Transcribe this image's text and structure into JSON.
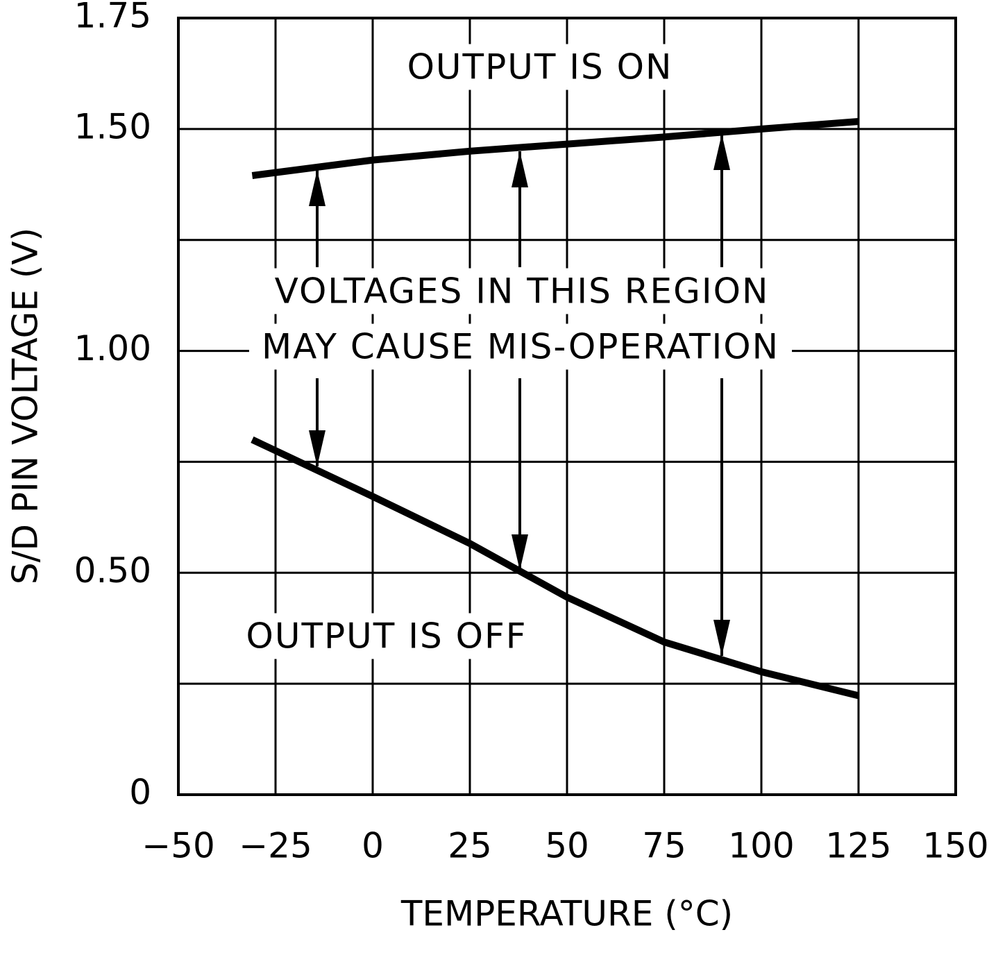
{
  "chart_data": {
    "type": "line",
    "xlabel": "TEMPERATURE (°C)",
    "ylabel": "S/D PIN VOLTAGE (V)",
    "x": [
      -31,
      0,
      25,
      50,
      75,
      100,
      125
    ],
    "series": [
      {
        "color": "#000000",
        "values": [
          1.395,
          1.43,
          1.45,
          1.466,
          1.482,
          1.5,
          1.517
        ]
      },
      {
        "color": "#000000",
        "values": [
          0.8,
          0.672,
          0.566,
          0.445,
          0.344,
          0.277,
          0.223
        ]
      }
    ],
    "xlim": [
      -50,
      150
    ],
    "xticks": [
      {
        "value": -50,
        "label": "−50"
      },
      {
        "value": -25,
        "label": "−25"
      },
      0,
      25,
      50,
      75,
      100,
      125,
      150
    ],
    "ylim": [
      0,
      1.75
    ],
    "yticks": [
      0,
      {
        "value": 0.5,
        "label": "0.50"
      },
      {
        "value": 1,
        "label": "1.00"
      },
      {
        "value": 1.5,
        "label": "1.50"
      },
      1.75
    ],
    "ygrid": [
      0.25,
      0.5,
      0.75,
      1,
      1.25,
      1.5
    ],
    "grid": true,
    "annotations": [
      "OUTPUT IS ON",
      "VOLTAGES IN THIS REGION",
      "MAY CAUSE MIS-OPERATION",
      "OUTPUT IS OFF"
    ]
  }
}
